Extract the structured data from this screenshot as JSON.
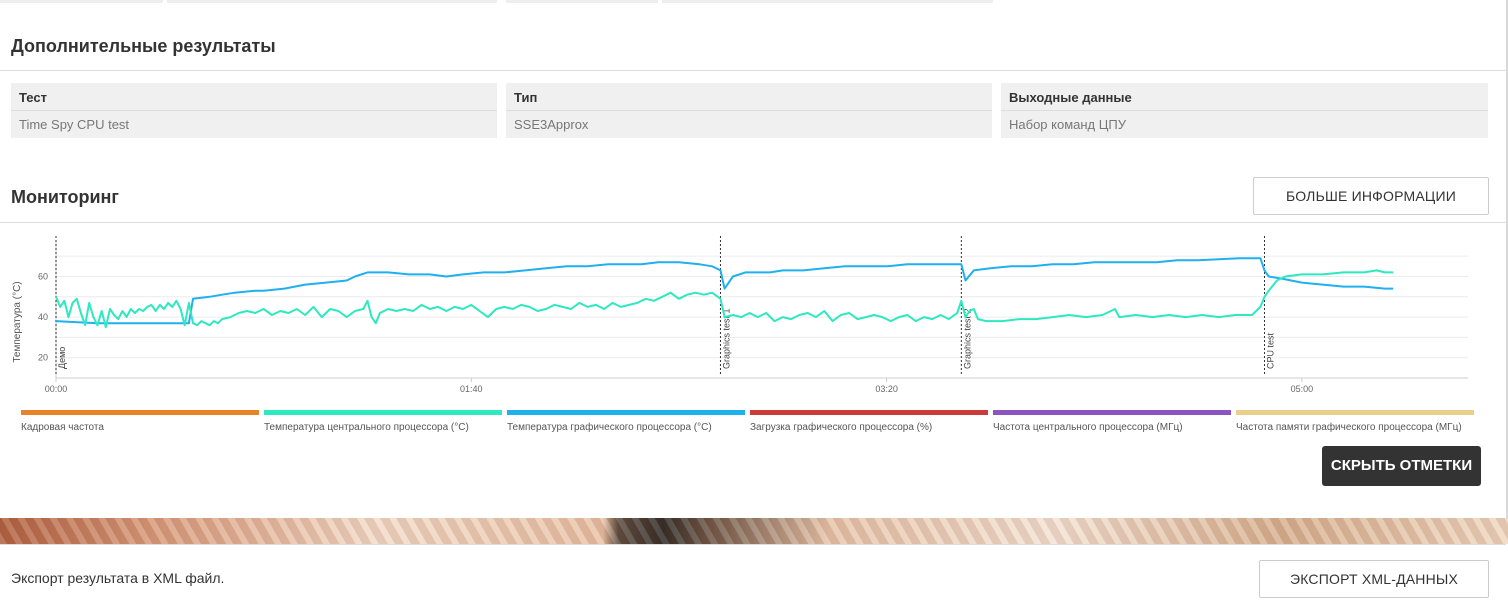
{
  "additional": {
    "title": "Дополнительные результаты",
    "columns": [
      {
        "header": "Тест",
        "value": "Time Spy CPU test"
      },
      {
        "header": "Тип",
        "value": "SSE3Approx"
      },
      {
        "header": "Выходные данные",
        "value": "Набор команд ЦПУ"
      }
    ]
  },
  "monitoring": {
    "title": "Мониторинг",
    "more_info_label": "БОЛЬШЕ ИНФОРМАЦИИ",
    "hide_marks_label": "СКРЫТЬ ОТМЕТКИ"
  },
  "legend": [
    {
      "label": "Кадровая частота",
      "color": "#e8832a"
    },
    {
      "label": "Температура центрального процессора (°C)",
      "color": "#2ee8bf"
    },
    {
      "label": "Температура графического процессора (°C)",
      "color": "#1fb0ee"
    },
    {
      "label": "Загрузка графического процессора (%)",
      "color": "#cc3a3a"
    },
    {
      "label": "Частота центрального процессора (МГц)",
      "color": "#8a55c0"
    },
    {
      "label": "Частота памяти графического процессора (МГц)",
      "color": "#e8d08a"
    }
  ],
  "chart_data": {
    "type": "line",
    "ylabel": "Температура (°C)",
    "yticks": [
      20,
      40,
      60
    ],
    "ylim": [
      10,
      75
    ],
    "xlim": [
      0,
      340
    ],
    "xticks": [
      {
        "value": 0,
        "label": "00:00"
      },
      {
        "value": 100,
        "label": "01:40"
      },
      {
        "value": 200,
        "label": "03:20"
      },
      {
        "value": 300,
        "label": "05:00"
      }
    ],
    "markers": [
      {
        "t": 0,
        "label": "Демо"
      },
      {
        "t": 160,
        "label": "Graphics test 1"
      },
      {
        "t": 218,
        "label": "Graphics test 2"
      },
      {
        "t": 291,
        "label": "CPU test"
      }
    ],
    "series": [
      {
        "name": "Температура графического процессора (°C)",
        "color": "#1fb0ee",
        "points": [
          [
            0,
            38
          ],
          [
            10,
            37
          ],
          [
            20,
            37
          ],
          [
            32,
            37
          ],
          [
            33,
            49
          ],
          [
            37,
            50
          ],
          [
            40,
            51
          ],
          [
            43,
            52
          ],
          [
            48,
            53
          ],
          [
            50,
            53
          ],
          [
            55,
            54
          ],
          [
            60,
            56
          ],
          [
            65,
            57
          ],
          [
            70,
            58
          ],
          [
            72,
            60
          ],
          [
            75,
            62
          ],
          [
            80,
            62
          ],
          [
            85,
            61
          ],
          [
            90,
            61
          ],
          [
            94,
            60
          ],
          [
            98,
            61
          ],
          [
            103,
            62
          ],
          [
            108,
            62
          ],
          [
            113,
            63
          ],
          [
            118,
            64
          ],
          [
            123,
            65
          ],
          [
            128,
            65
          ],
          [
            133,
            66
          ],
          [
            138,
            66
          ],
          [
            141,
            66
          ],
          [
            145,
            67
          ],
          [
            150,
            67
          ],
          [
            155,
            66
          ],
          [
            158,
            65
          ],
          [
            160,
            63
          ],
          [
            161,
            54
          ],
          [
            163,
            60
          ],
          [
            166,
            62
          ],
          [
            172,
            62
          ],
          [
            175,
            63
          ],
          [
            180,
            63
          ],
          [
            185,
            64
          ],
          [
            190,
            65
          ],
          [
            195,
            65
          ],
          [
            200,
            65
          ],
          [
            205,
            66
          ],
          [
            210,
            66
          ],
          [
            218,
            66
          ],
          [
            219,
            58
          ],
          [
            221,
            63
          ],
          [
            225,
            64
          ],
          [
            230,
            65
          ],
          [
            235,
            65
          ],
          [
            240,
            66
          ],
          [
            245,
            66
          ],
          [
            250,
            67
          ],
          [
            260,
            67
          ],
          [
            265,
            67
          ],
          [
            270,
            68
          ],
          [
            275,
            68
          ],
          [
            285,
            69
          ],
          [
            290,
            69
          ],
          [
            291,
            63
          ],
          [
            292,
            60
          ],
          [
            295,
            59
          ],
          [
            300,
            57
          ],
          [
            305,
            56
          ],
          [
            310,
            55
          ],
          [
            315,
            55
          ],
          [
            320,
            54
          ],
          [
            322,
            54
          ]
        ]
      },
      {
        "name": "Температура центрального процессора (°C)",
        "color": "#2ee8bf",
        "points": [
          [
            0,
            50
          ],
          [
            1,
            45
          ],
          [
            2,
            48
          ],
          [
            3,
            40
          ],
          [
            4,
            47
          ],
          [
            5,
            49
          ],
          [
            6,
            42
          ],
          [
            7,
            36
          ],
          [
            8,
            47
          ],
          [
            9,
            40
          ],
          [
            10,
            36
          ],
          [
            11,
            43
          ],
          [
            12,
            35
          ],
          [
            13,
            44
          ],
          [
            14,
            41
          ],
          [
            15,
            39
          ],
          [
            16,
            43
          ],
          [
            17,
            40
          ],
          [
            18,
            44
          ],
          [
            19,
            42
          ],
          [
            20,
            44
          ],
          [
            21,
            43
          ],
          [
            22,
            45
          ],
          [
            23,
            46
          ],
          [
            24,
            43
          ],
          [
            25,
            46
          ],
          [
            26,
            44
          ],
          [
            27,
            47
          ],
          [
            28,
            45
          ],
          [
            29,
            48
          ],
          [
            30,
            44
          ],
          [
            31,
            36
          ],
          [
            32,
            47
          ],
          [
            33,
            37
          ],
          [
            34,
            36
          ],
          [
            35,
            38
          ],
          [
            36,
            37
          ],
          [
            37,
            36
          ],
          [
            38,
            38
          ],
          [
            39,
            37
          ],
          [
            40,
            39
          ],
          [
            42,
            40
          ],
          [
            44,
            42
          ],
          [
            46,
            43
          ],
          [
            48,
            42
          ],
          [
            50,
            44
          ],
          [
            52,
            41
          ],
          [
            54,
            43
          ],
          [
            56,
            42
          ],
          [
            58,
            44
          ],
          [
            60,
            41
          ],
          [
            62,
            45
          ],
          [
            64,
            40
          ],
          [
            66,
            44
          ],
          [
            68,
            43
          ],
          [
            70,
            40
          ],
          [
            72,
            43
          ],
          [
            74,
            44
          ],
          [
            75,
            48
          ],
          [
            76,
            40
          ],
          [
            77,
            37
          ],
          [
            78,
            42
          ],
          [
            80,
            44
          ],
          [
            82,
            43
          ],
          [
            84,
            44
          ],
          [
            86,
            43
          ],
          [
            88,
            46
          ],
          [
            90,
            44
          ],
          [
            92,
            45
          ],
          [
            94,
            43
          ],
          [
            96,
            45
          ],
          [
            98,
            44
          ],
          [
            100,
            46
          ],
          [
            102,
            43
          ],
          [
            104,
            40
          ],
          [
            106,
            44
          ],
          [
            108,
            45
          ],
          [
            110,
            44
          ],
          [
            112,
            46
          ],
          [
            114,
            45
          ],
          [
            116,
            43
          ],
          [
            118,
            44
          ],
          [
            120,
            46
          ],
          [
            122,
            45
          ],
          [
            124,
            44
          ],
          [
            126,
            47
          ],
          [
            128,
            45
          ],
          [
            130,
            46
          ],
          [
            132,
            44
          ],
          [
            134,
            47
          ],
          [
            136,
            45
          ],
          [
            138,
            46
          ],
          [
            140,
            47
          ],
          [
            142,
            49
          ],
          [
            144,
            48
          ],
          [
            146,
            50
          ],
          [
            148,
            52
          ],
          [
            150,
            49
          ],
          [
            152,
            51
          ],
          [
            154,
            52
          ],
          [
            156,
            51
          ],
          [
            158,
            52
          ],
          [
            160,
            49
          ],
          [
            161,
            40
          ],
          [
            163,
            41
          ],
          [
            165,
            40
          ],
          [
            167,
            42
          ],
          [
            169,
            40
          ],
          [
            171,
            42
          ],
          [
            173,
            38
          ],
          [
            175,
            40
          ],
          [
            177,
            39
          ],
          [
            179,
            41
          ],
          [
            181,
            42
          ],
          [
            183,
            40
          ],
          [
            185,
            43
          ],
          [
            187,
            38
          ],
          [
            189,
            41
          ],
          [
            191,
            42
          ],
          [
            193,
            39
          ],
          [
            195,
            40
          ],
          [
            197,
            41
          ],
          [
            199,
            40
          ],
          [
            201,
            38
          ],
          [
            203,
            40
          ],
          [
            205,
            41
          ],
          [
            207,
            38
          ],
          [
            209,
            40
          ],
          [
            211,
            39
          ],
          [
            213,
            41
          ],
          [
            215,
            39
          ],
          [
            217,
            42
          ],
          [
            218,
            48
          ],
          [
            219,
            40
          ],
          [
            220,
            43
          ],
          [
            221,
            44
          ],
          [
            222,
            39
          ],
          [
            224,
            38
          ],
          [
            228,
            38
          ],
          [
            232,
            39
          ],
          [
            236,
            39
          ],
          [
            240,
            40
          ],
          [
            244,
            41
          ],
          [
            248,
            40
          ],
          [
            252,
            41
          ],
          [
            255,
            44
          ],
          [
            256,
            40
          ],
          [
            260,
            41
          ],
          [
            264,
            40
          ],
          [
            268,
            41
          ],
          [
            272,
            40
          ],
          [
            276,
            41
          ],
          [
            280,
            40
          ],
          [
            284,
            41
          ],
          [
            288,
            41
          ],
          [
            290,
            45
          ],
          [
            291,
            50
          ],
          [
            292,
            53
          ],
          [
            294,
            58
          ],
          [
            296,
            60
          ],
          [
            300,
            61
          ],
          [
            305,
            61
          ],
          [
            310,
            62
          ],
          [
            315,
            62
          ],
          [
            318,
            63
          ],
          [
            320,
            62
          ],
          [
            322,
            62
          ]
        ]
      }
    ]
  },
  "export": {
    "text": "Экспорт результата в XML файл.",
    "button_label": "ЭКСПОРТ XML-ДАННЫХ"
  }
}
